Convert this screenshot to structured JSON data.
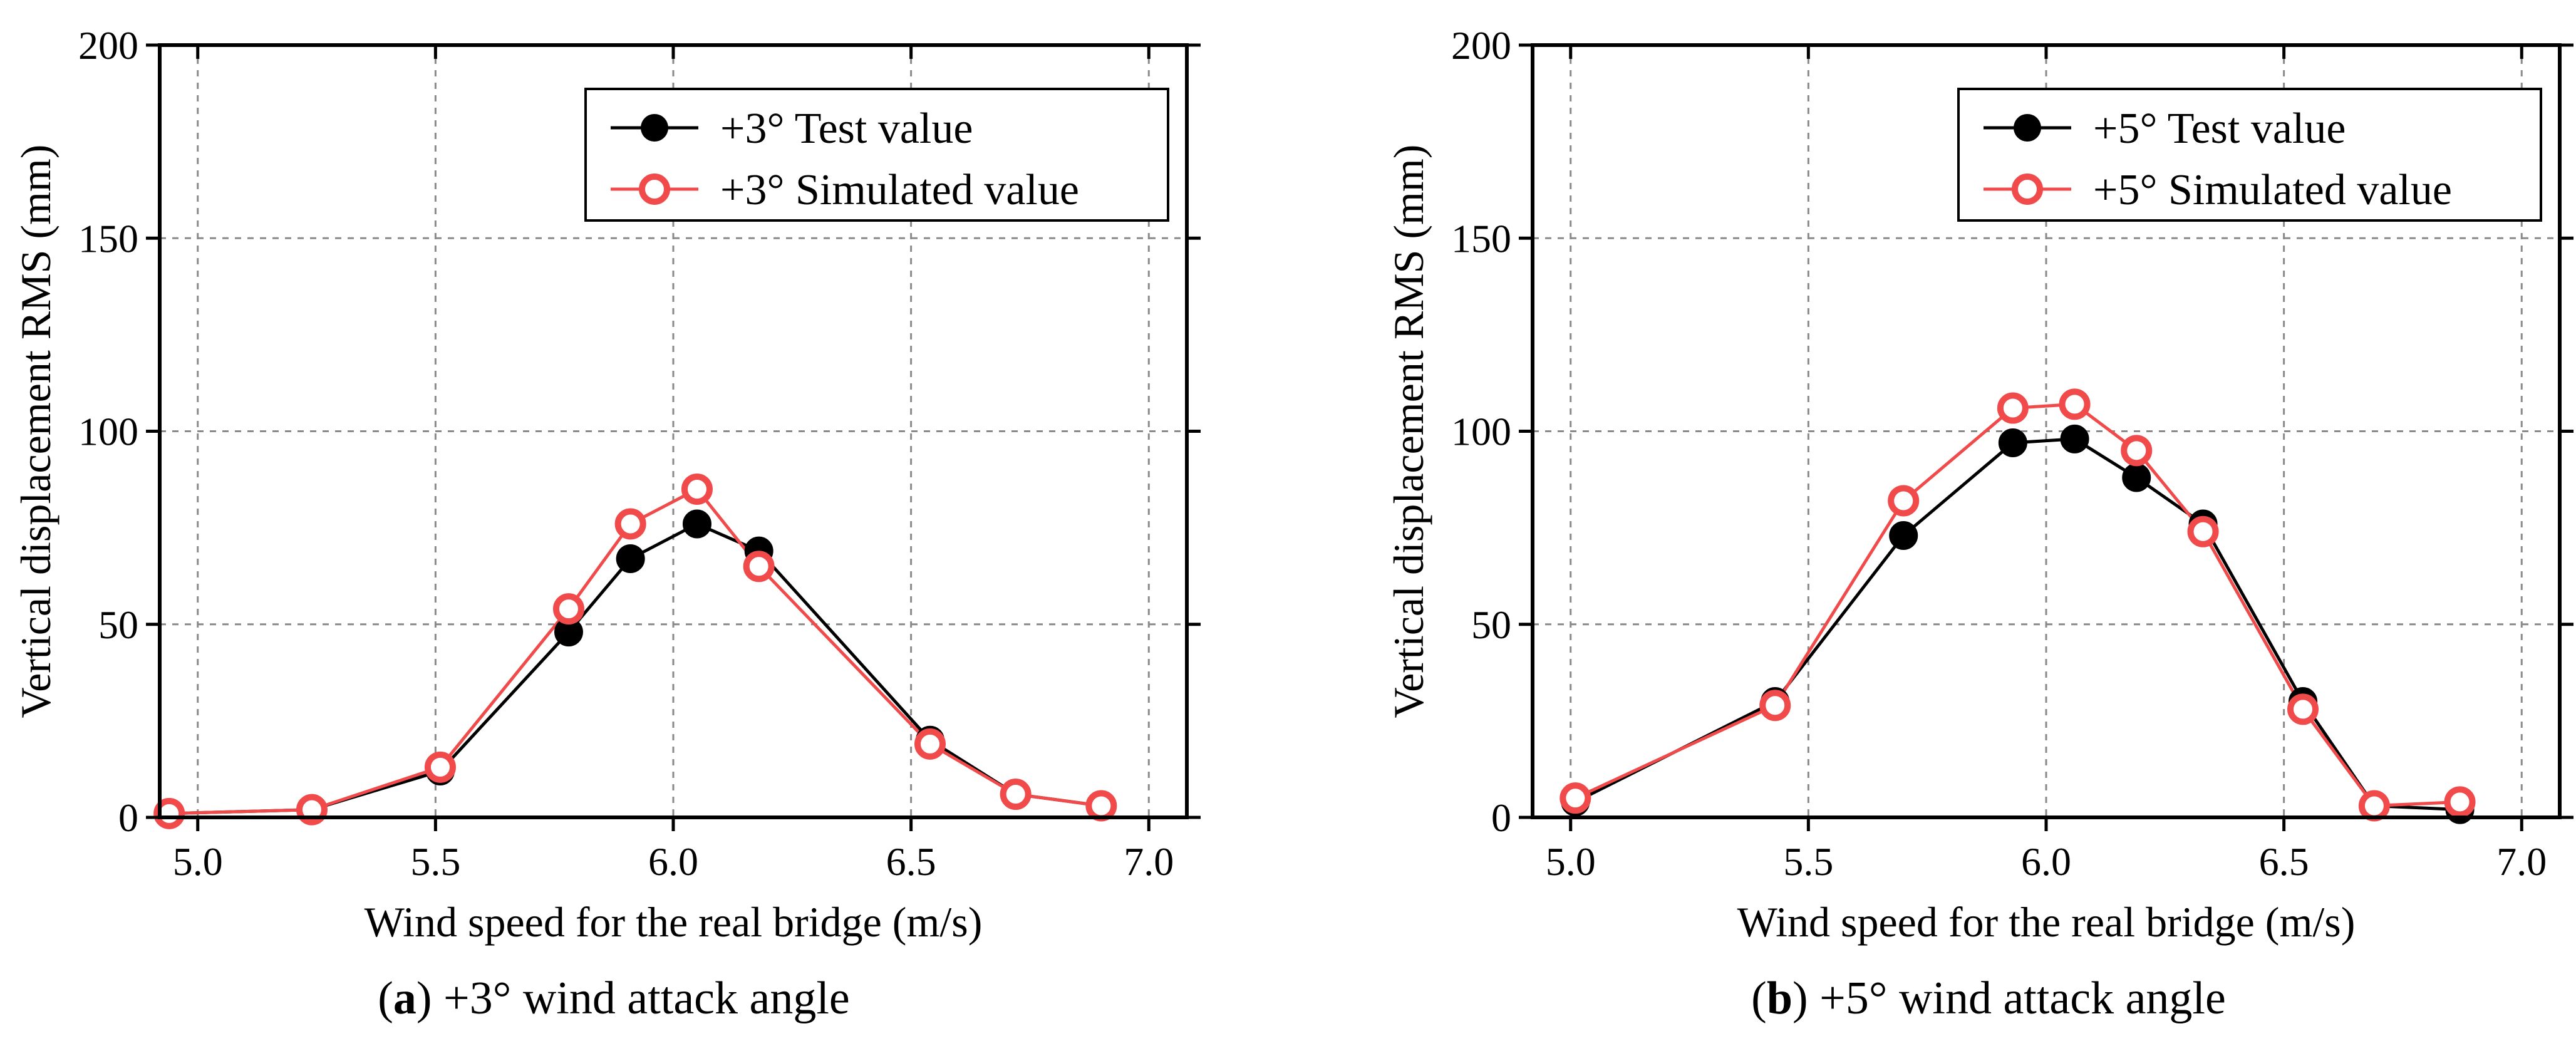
{
  "colors": {
    "test": "#000000",
    "simulated": "#f04a4a",
    "grid": "#8a8a8a",
    "frame": "#000000"
  },
  "chart_data": [
    {
      "type": "line",
      "caption_label": "a",
      "caption_text": ") +3° wind attack angle",
      "caption_open": "(",
      "xlabel": "Wind speed for the real bridge (m/s)",
      "ylabel": "Vertical displacement RMS (mm)",
      "xlim": [
        4.92,
        7.08
      ],
      "ylim": [
        0,
        200
      ],
      "xticks": [
        5.0,
        5.5,
        6.0,
        6.5,
        7.0
      ],
      "xtick_labels": [
        "5.0",
        "5.5",
        "6.0",
        "6.5",
        "7.0"
      ],
      "yticks": [
        0,
        50,
        100,
        150,
        200
      ],
      "ytick_labels": [
        "0",
        "50",
        "100",
        "150",
        "200"
      ],
      "grid": true,
      "legend_position": "top-right",
      "series": [
        {
          "name": "+3° Test value",
          "marker": "filled-circle",
          "x": [
            4.94,
            5.24,
            5.51,
            5.78,
            5.91,
            6.05,
            6.18,
            6.54,
            6.72,
            6.9
          ],
          "y": [
            1,
            2,
            12,
            48,
            67,
            76,
            69,
            20,
            6,
            3
          ]
        },
        {
          "name": "+3° Simulated value",
          "marker": "open-circle",
          "x": [
            4.94,
            5.24,
            5.51,
            5.78,
            5.91,
            6.05,
            6.18,
            6.54,
            6.72,
            6.9
          ],
          "y": [
            1,
            2,
            13,
            54,
            76,
            85,
            65,
            19,
            6,
            3
          ]
        }
      ]
    },
    {
      "type": "line",
      "caption_label": "b",
      "caption_text": ") +5° wind attack angle",
      "caption_open": "(",
      "xlabel": "Wind speed for the real bridge (m/s)",
      "ylabel": "Vertical displacement RMS (mm)",
      "xlim": [
        4.92,
        7.08
      ],
      "ylim": [
        0,
        200
      ],
      "xticks": [
        5.0,
        5.5,
        6.0,
        6.5,
        7.0
      ],
      "xtick_labels": [
        "5.0",
        "5.5",
        "6.0",
        "6.5",
        "7.0"
      ],
      "yticks": [
        0,
        50,
        100,
        150,
        200
      ],
      "ytick_labels": [
        "0",
        "50",
        "100",
        "150",
        "200"
      ],
      "grid": true,
      "legend_position": "top-right",
      "series": [
        {
          "name": "+5° Test value",
          "marker": "filled-circle",
          "x": [
            5.01,
            5.43,
            5.7,
            5.93,
            6.06,
            6.19,
            6.33,
            6.54,
            6.69,
            6.87
          ],
          "y": [
            4,
            30,
            73,
            97,
            98,
            88,
            76,
            30,
            3,
            2
          ]
        },
        {
          "name": "+5° Simulated value",
          "marker": "open-circle",
          "x": [
            5.01,
            5.43,
            5.7,
            5.93,
            6.06,
            6.19,
            6.33,
            6.54,
            6.69,
            6.87
          ],
          "y": [
            5,
            29,
            82,
            106,
            107,
            95,
            74,
            28,
            3,
            4
          ]
        }
      ]
    }
  ]
}
